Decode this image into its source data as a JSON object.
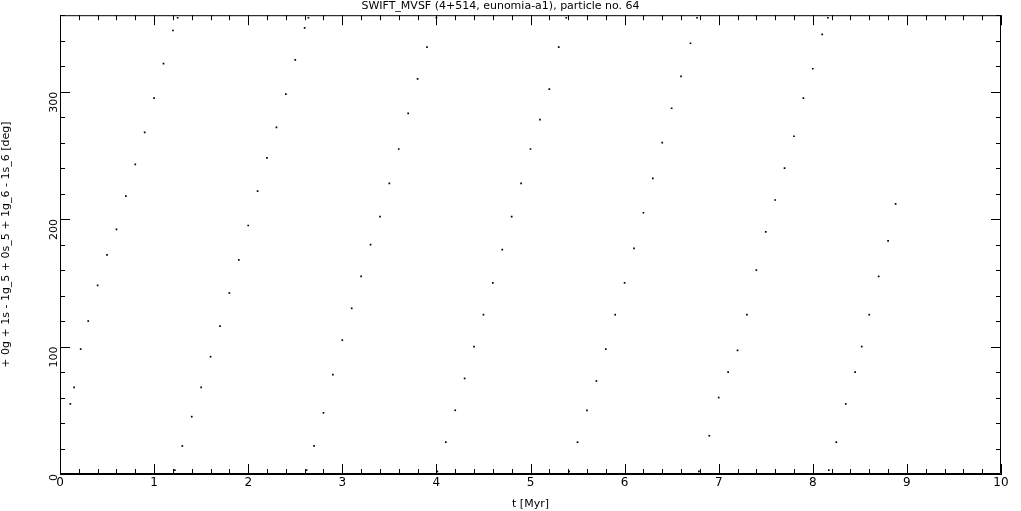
{
  "chart_data": {
    "type": "scatter",
    "title": "SWIFT_MVSF (4+514, eunomia-a1), particle no. 64",
    "xlabel": "t [Myr]",
    "ylabel": "+ 0g + 1s - 1g_5 + 0s_5 + 1g_6 - 1s_6 [deg]",
    "xlim": [
      0,
      10
    ],
    "ylim": [
      0,
      360
    ],
    "xticks": [
      0,
      {
        "value": 0.2,
        "label": null
      },
      {
        "value": 0.4,
        "label": null
      },
      {
        "value": 0.6,
        "label": null
      },
      {
        "value": 0.8,
        "label": null
      },
      1,
      {
        "value": 1.2,
        "label": null
      },
      {
        "value": 1.4,
        "label": null
      },
      {
        "value": 1.6,
        "label": null
      },
      {
        "value": 1.8,
        "label": null
      },
      2,
      {
        "value": 2.2,
        "label": null
      },
      {
        "value": 2.4,
        "label": null
      },
      {
        "value": 2.6,
        "label": null
      },
      {
        "value": 2.8,
        "label": null
      },
      3,
      {
        "value": 3.2,
        "label": null
      },
      {
        "value": 3.4,
        "label": null
      },
      {
        "value": 3.6,
        "label": null
      },
      {
        "value": 3.8,
        "label": null
      },
      4,
      {
        "value": 4.2,
        "label": null
      },
      {
        "value": 4.4,
        "label": null
      },
      {
        "value": 4.6,
        "label": null
      },
      {
        "value": 4.8,
        "label": null
      },
      5,
      {
        "value": 5.2,
        "label": null
      },
      {
        "value": 5.4,
        "label": null
      },
      {
        "value": 5.6,
        "label": null
      },
      {
        "value": 5.8,
        "label": null
      },
      6,
      {
        "value": 6.2,
        "label": null
      },
      {
        "value": 6.4,
        "label": null
      },
      {
        "value": 6.6,
        "label": null
      },
      {
        "value": 6.8,
        "label": null
      },
      7,
      {
        "value": 7.2,
        "label": null
      },
      {
        "value": 7.4,
        "label": null
      },
      {
        "value": 7.6,
        "label": null
      },
      {
        "value": 7.8,
        "label": null
      },
      8,
      {
        "value": 8.2,
        "label": null
      },
      {
        "value": 8.4,
        "label": null
      },
      {
        "value": 8.6,
        "label": null
      },
      {
        "value": 8.8,
        "label": null
      },
      9,
      {
        "value": 9.2,
        "label": null
      },
      {
        "value": 9.4,
        "label": null
      },
      {
        "value": 9.6,
        "label": null
      },
      {
        "value": 9.8,
        "label": null
      },
      10
    ],
    "yticks": [
      0,
      {
        "value": 20,
        "label": null
      },
      {
        "value": 40,
        "label": null
      },
      {
        "value": 60,
        "label": null
      },
      {
        "value": 80,
        "label": null
      },
      100,
      {
        "value": 120,
        "label": null
      },
      {
        "value": 140,
        "label": null
      },
      {
        "value": 160,
        "label": null
      },
      {
        "value": 180,
        "label": null
      },
      200,
      {
        "value": 220,
        "label": null
      },
      {
        "value": 240,
        "label": null
      },
      {
        "value": 260,
        "label": null
      },
      {
        "value": 280,
        "label": null
      },
      300,
      {
        "value": 320,
        "label": null
      },
      {
        "value": 340,
        "label": null
      },
      {
        "value": 360,
        "label": null
      }
    ],
    "grid": false,
    "legend": false,
    "marker": "square",
    "series": [
      {
        "color": "#000000",
        "x": [
          0.11,
          0.15,
          0.22,
          0.3,
          0.4,
          0.5,
          0.6,
          0.7,
          0.8,
          0.9,
          1.0,
          1.1,
          1.2,
          1.25,
          1.22,
          1.3,
          1.4,
          1.5,
          1.6,
          1.7,
          1.8,
          1.9,
          2.0,
          2.1,
          2.2,
          2.3,
          2.4,
          2.5,
          2.6,
          2.64,
          2.62,
          2.7,
          2.8,
          2.9,
          3.0,
          3.1,
          3.2,
          3.3,
          3.4,
          3.5,
          3.6,
          3.7,
          3.8,
          3.9,
          4.0,
          4.01,
          4.1,
          4.2,
          4.3,
          4.4,
          4.5,
          4.6,
          4.7,
          4.8,
          4.9,
          5.0,
          5.1,
          5.2,
          5.3,
          5.38,
          5.41,
          5.5,
          5.6,
          5.7,
          5.8,
          5.9,
          6.0,
          6.1,
          6.2,
          6.3,
          6.4,
          6.5,
          6.6,
          6.7,
          6.77,
          6.79,
          6.9,
          7.0,
          7.1,
          7.2,
          7.3,
          7.4,
          7.5,
          7.6,
          7.7,
          7.8,
          7.9,
          8.0,
          8.1,
          8.16,
          8.17,
          8.25,
          8.35,
          8.45,
          8.52,
          8.6,
          8.7,
          8.8,
          8.88
        ],
        "values": [
          55,
          68,
          98,
          120,
          148,
          172,
          192,
          218,
          243,
          268,
          295,
          322,
          348,
          358,
          3,
          22,
          45,
          68,
          92,
          116,
          142,
          168,
          195,
          222,
          248,
          272,
          298,
          325,
          350,
          358,
          3,
          22,
          48,
          78,
          105,
          130,
          155,
          180,
          202,
          228,
          255,
          283,
          310,
          335,
          358,
          2,
          25,
          50,
          75,
          100,
          125,
          150,
          176,
          202,
          228,
          255,
          278,
          302,
          335,
          358,
          2,
          25,
          50,
          73,
          98,
          125,
          150,
          177,
          205,
          232,
          260,
          287,
          312,
          338,
          358,
          2,
          30,
          60,
          80,
          97,
          125,
          160,
          190,
          215,
          240,
          265,
          295,
          318,
          345,
          358,
          3,
          25,
          55,
          80,
          100,
          125,
          155,
          183,
          212
        ]
      }
    ]
  }
}
